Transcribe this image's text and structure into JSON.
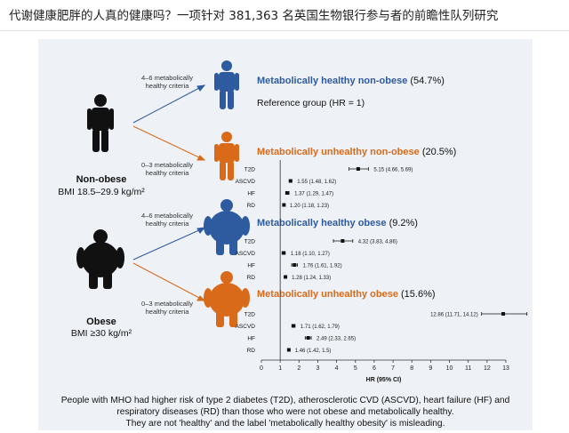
{
  "title": "代谢健康肥胖的人真的健康吗？一项针对 381,363 名英国生物银行参与者的前瞻性队列研究",
  "groups": {
    "non_obese": {
      "label": "Non-obese",
      "bmi": "BMI 18.5–29.9 kg/m²"
    },
    "obese": {
      "label": "Obese",
      "bmi": "BMI ≥30 kg/m²"
    }
  },
  "criteria": {
    "healthy": [
      "4–6 metabolically",
      "healthy criteria"
    ],
    "unhealthy": [
      "0–3 metabolically",
      "healthy criteria"
    ]
  },
  "categories": [
    {
      "name": "Metabolically healthy non-obese",
      "pct": "(54.7%)",
      "color": "#2e5aa0"
    },
    {
      "name": "Metabolically unhealthy non-obese",
      "pct": "(20.5%)",
      "color": "#d96a1a"
    },
    {
      "name": "Metabolically healthy obese",
      "pct": "(9.2%)",
      "color": "#2e5aa0"
    },
    {
      "name": "Metabolically unhealthy obese",
      "pct": "(15.6%)",
      "color": "#d96a1a"
    }
  ],
  "reference": "Reference group (HR = 1)",
  "chart_data": {
    "type": "forest",
    "xlabel": "HR (95% CI)",
    "xlim": [
      0,
      13
    ],
    "ticks": [
      0,
      1,
      2,
      3,
      4,
      5,
      6,
      7,
      8,
      9,
      10,
      11,
      12,
      13
    ],
    "panels": [
      {
        "group": "Metabolically unhealthy non-obese",
        "rows": [
          {
            "label": "T2D",
            "hr": 5.15,
            "lo": 4.66,
            "hi": 5.69,
            "text": "5.15 (4.66, 5.69)"
          },
          {
            "label": "ASCVD",
            "hr": 1.55,
            "lo": 1.48,
            "hi": 1.62,
            "text": "1.55 (1.48, 1.62)"
          },
          {
            "label": "HF",
            "hr": 1.37,
            "lo": 1.29,
            "hi": 1.47,
            "text": "1.37 (1.29, 1.47)"
          },
          {
            "label": "RD",
            "hr": 1.2,
            "lo": 1.18,
            "hi": 1.23,
            "text": "1.20 (1.18, 1.23)"
          }
        ]
      },
      {
        "group": "Metabolically healthy obese",
        "rows": [
          {
            "label": "T2D",
            "hr": 4.32,
            "lo": 3.83,
            "hi": 4.86,
            "text": "4.32 (3.83, 4.86)"
          },
          {
            "label": "ASCVD",
            "hr": 1.18,
            "lo": 1.1,
            "hi": 1.27,
            "text": "1.18 (1.10, 1.27)"
          },
          {
            "label": "HF",
            "hr": 1.76,
            "lo": 1.61,
            "hi": 1.92,
            "text": "1.76 (1.61, 1.92)"
          },
          {
            "label": "RD",
            "hr": 1.28,
            "lo": 1.24,
            "hi": 1.33,
            "text": "1.28 (1.24, 1.33)"
          }
        ]
      },
      {
        "group": "Metabolically unhealthy obese",
        "rows": [
          {
            "label": "T2D",
            "hr": 12.86,
            "lo": 11.71,
            "hi": 14.12,
            "text": "12.86 (11.71, 14.12)"
          },
          {
            "label": "ASCVD",
            "hr": 1.71,
            "lo": 1.62,
            "hi": 1.79,
            "text": "1.71 (1.62, 1.79)"
          },
          {
            "label": "HF",
            "hr": 2.49,
            "lo": 2.33,
            "hi": 2.65,
            "text": "2.49 (2.33, 2.65)"
          },
          {
            "label": "RD",
            "hr": 1.46,
            "lo": 1.42,
            "hi": 1.5,
            "text": "1.46 (1.42, 1.5)"
          }
        ]
      }
    ]
  },
  "caption": [
    "People with MHO had higher risk of type 2 diabetes (T2D), atherosclerotic CVD (ASCVD), heart failure (HF) and",
    "respiratory diseases (RD) than those who were not obese and metabolically healthy.",
    "They are not 'healthy' and the label 'metabolically healthy obesity' is misleading."
  ]
}
